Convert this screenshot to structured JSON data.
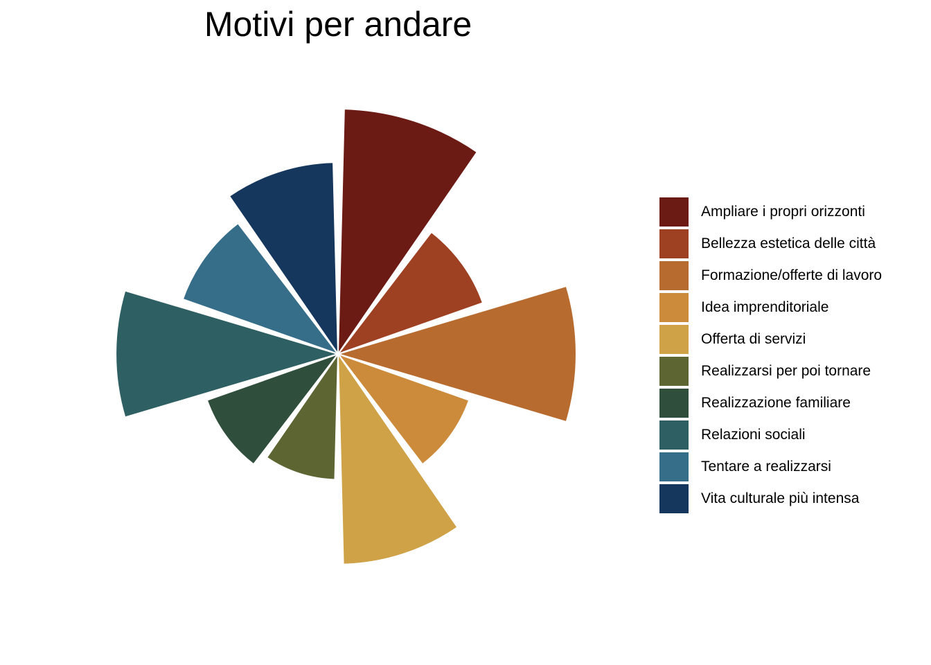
{
  "chart_data": {
    "type": "polar-bar",
    "title": "Motivi per andare",
    "legend_position": "right",
    "grid": false,
    "categories": [
      "Ampliare i propri orizzonti",
      "Bellezza estetica delle città",
      "Formazione/offerte di lavoro",
      "Idea imprenditoriale",
      "Offerta di servizi",
      "Realizzarsi per poi tornare",
      "Realizzazione familiare",
      "Relazioni sociali",
      "Tentare a realizzarsi",
      "Vita culturale più intensa"
    ],
    "values": [
      353,
      221,
      343,
      200,
      303,
      181,
      200,
      320,
      237,
      276
    ],
    "colors": [
      "#6b1a14",
      "#9e4123",
      "#b86b2f",
      "#cc8b3b",
      "#cfa247",
      "#5d6633",
      "#2f4e3b",
      "#2e5f63",
      "#366d89",
      "#15375d"
    ]
  }
}
